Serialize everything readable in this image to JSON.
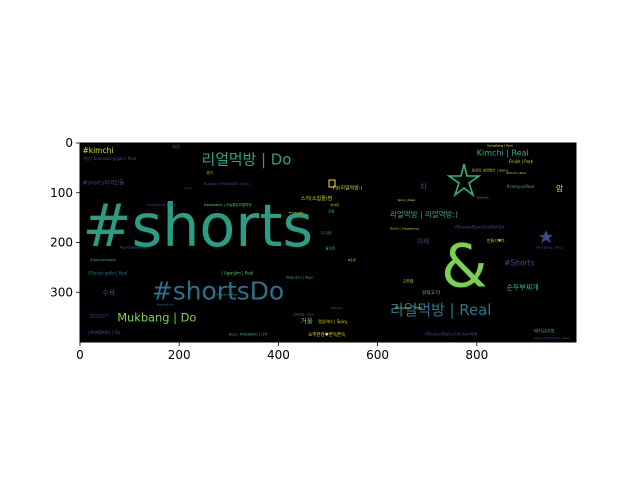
{
  "chart_data": {
    "type": "wordcloud",
    "title": "",
    "xlabel": "",
    "ylabel": "",
    "xlim": [
      0,
      1000
    ],
    "ylim": [
      400,
      0
    ],
    "x_ticks": [
      "0",
      "200",
      "400",
      "600",
      "800"
    ],
    "y_ticks": [
      "0",
      "100",
      "200",
      "300"
    ],
    "background": "#000000",
    "colormap": "viridis",
    "words": [
      {
        "text": "#shorts",
        "x": 5,
        "y": 175,
        "size": 118,
        "color": "#2a9d84"
      },
      {
        "text": "&",
        "x": 728,
        "y": 255,
        "size": 120,
        "color": "#7ad151"
      },
      {
        "text": "#shortsDo",
        "x": 145,
        "y": 300,
        "size": 50,
        "color": "#2c728e"
      },
      {
        "text": "리얼먹방 | Do",
        "x": 245,
        "y": 35,
        "size": 30,
        "color": "#2ea37d"
      },
      {
        "text": "리얼먹방 | Real",
        "x": 625,
        "y": 338,
        "size": 30,
        "color": "#29788e"
      },
      {
        "text": "Mukbang | Do",
        "x": 75,
        "y": 352,
        "size": 23,
        "color": "#7fd34e"
      },
      {
        "text": "Kimchi | Real",
        "x": 800,
        "y": 20,
        "size": 16,
        "color": "#2fb47c"
      },
      {
        "text": "리얼먹방 | 리얼먹방:)",
        "x": 625,
        "y": 145,
        "size": 15,
        "color": "#3ca97a"
      },
      {
        "text": "#kimchi",
        "x": 5,
        "y": 16,
        "size": 15,
        "color": "#d8e219"
      },
      {
        "text": "#Shorts",
        "x": 855,
        "y": 242,
        "size": 15,
        "color": "#3e4a89"
      },
      {
        "text": "순두부찌개",
        "x": 860,
        "y": 290,
        "size": 14,
        "color": "#3bbb75"
      },
      {
        "text": "수육",
        "x": 45,
        "y": 302,
        "size": 14,
        "color": "#3b528b"
      },
      {
        "text": "#shorts외국인들",
        "x": 5,
        "y": 80,
        "size": 11,
        "color": "#3b528b"
      },
      {
        "text": "거울",
        "x": 445,
        "y": 358,
        "size": 13,
        "color": "#7fd34e"
      },
      {
        "text": "차",
        "x": 685,
        "y": 88,
        "size": 16,
        "color": "#3e4a89"
      },
      {
        "text": "암",
        "x": 960,
        "y": 92,
        "size": 15,
        "color": "#fde725"
      },
      {
        "text": "이해",
        "x": 680,
        "y": 198,
        "size": 13,
        "color": "#3e4a89"
      },
      {
        "text": "Fat리얼먹방:)",
        "x": 510,
        "y": 90,
        "size": 10,
        "color": "#aadc32"
      },
      {
        "text": "스지(소힘줄)찜",
        "x": 445,
        "y": 112,
        "size": 10,
        "color": "#aadc32"
      },
      {
        "text": "Finish | Pork",
        "x": 865,
        "y": 38,
        "size": 8,
        "color": "#c2df23"
      },
      {
        "text": "#ramyunReal",
        "x": 860,
        "y": 88,
        "size": 8,
        "color": "#2fb47c"
      },
      {
        "text": "동치미,계란말이 | Spicy",
        "x": 790,
        "y": 55,
        "size": 7,
        "color": "#9fda3a"
      },
      {
        "text": "| Dwaeji-galbi | Real",
        "x": 15,
        "y": 262,
        "size": 8,
        "color": "#2a788e"
      },
      {
        "text": "| Agwijjim | Real",
        "x": 285,
        "y": 262,
        "size": 8,
        "color": "#5ec962"
      },
      {
        "text": "| MUKBANG | Do",
        "x": 15,
        "y": 382,
        "size": 8,
        "color": "#3b528b"
      },
      {
        "text": "먹방 | Sundubu-jjigae | Real",
        "x": 5,
        "y": 32,
        "size": 8,
        "color": "#3b528b"
      },
      {
        "text": "Bulgogi | MUKBANG | Real",
        "x": 250,
        "y": 82,
        "size": 7,
        "color": "#3e4a89"
      },
      {
        "text": "#BraisedSpicyChicken육패",
        "x": 695,
        "y": 385,
        "size": 8,
        "color": "#3e4a89"
      },
      {
        "text": "#BraisedSpicyCodfishDo",
        "x": 755,
        "y": 170,
        "size": 8,
        "color": "#3b528b"
      },
      {
        "text": "소주한잔♥쫀득쫀득",
        "x": 460,
        "y": 385,
        "size": 9,
        "color": "#fde725"
      },
      {
        "text": "맛있어다 | Spicy",
        "x": 480,
        "y": 360,
        "size": 8,
        "color": "#d8e219"
      },
      {
        "text": "고추장",
        "x": 650,
        "y": 278,
        "size": 8,
        "color": "#d8e219"
      },
      {
        "text": "닭볶고기(",
        "x": 690,
        "y": 300,
        "size": 9,
        "color": "#5ec962"
      },
      {
        "text": "돼지갈비찜",
        "x": 915,
        "y": 378,
        "size": 9,
        "color": "#1fa187"
      },
      {
        "text": "Tangsuyuk | Real",
        "x": 135,
        "y": 125,
        "size": 7,
        "color": "#3e4a89"
      },
      {
        "text": "#spicyfoodReal",
        "x": 80,
        "y": 210,
        "size": 7,
        "color": "#2a788e"
      },
      {
        "text": "#Spicyoctopus",
        "x": 20,
        "y": 235,
        "size": 7,
        "color": "#2fb47c"
      },
      {
        "text": "Rice | MUKBANG | 너무",
        "x": 300,
        "y": 385,
        "size": 7,
        "color": "#2fb47c"
      },
      {
        "text": "만들기♥lt.",
        "x": 820,
        "y": 197,
        "size": 8,
        "color": "#c2df23"
      },
      {
        "text": "Kalguksu | Real",
        "x": 415,
        "y": 270,
        "size": 7,
        "color": "#3ca97a"
      },
      {
        "text": "매콤",
        "x": 185,
        "y": 8,
        "size": 9,
        "color": "#3b528b"
      },
      {
        "text": "아귀찜",
        "x": 485,
        "y": 182,
        "size": 8,
        "color": "#2a788e"
      },
      {
        "text": "불짓한",
        "x": 495,
        "y": 212,
        "size": 7,
        "color": "#2fb47c"
      },
      {
        "text": "포함",
        "x": 500,
        "y": 138,
        "size": 7,
        "color": "#2fb47c"
      },
      {
        "text": "Ramyeon | Real",
        "x": 635,
        "y": 332,
        "size": 7,
        "color": "#aadc32"
      },
      {
        "text": "명기",
        "x": 255,
        "y": 60,
        "size": 7,
        "color": "#aadc32"
      },
      {
        "text": "Mukbang | Rice",
        "x": 920,
        "y": 210,
        "size": 7,
        "color": "#3e4a89"
      },
      {
        "text": "Galbi | MUKBANG | Real",
        "x": 915,
        "y": 392,
        "size": 6,
        "color": "#3b528b"
      },
      {
        "text": "Gamjatang | Real",
        "x": 820,
        "y": 5,
        "size": 6,
        "color": "#fde725"
      },
      {
        "text": "Finish | Yukgaejang",
        "x": 625,
        "y": 172,
        "size": 6,
        "color": "#c2df23"
      },
      {
        "text": "tteokbokki | 오늘통닭리얼먹방",
        "x": 250,
        "y": 125,
        "size": 7,
        "color": "#5ec962"
      },
      {
        "text": "#ricecake",
        "x": 420,
        "y": 140,
        "size": 6,
        "color": "#c2df23"
      },
      {
        "text": "리얼먹방 | Real",
        "x": 430,
        "y": 345,
        "size": 6,
        "color": "#2a788e"
      },
      {
        "text": "#jjamppong",
        "x": 20,
        "y": 345,
        "size": 6,
        "color": "#3e4a89"
      },
      {
        "text": "Mustard | Real",
        "x": 275,
        "y": 305,
        "size": 6,
        "color": "#3ca97a"
      },
      {
        "text": "#shorts",
        "x": 800,
        "y": 110,
        "size": 6,
        "color": "#2fb47c"
      },
      {
        "text": "Kimchi | Pork",
        "x": 860,
        "y": 60,
        "size": 6,
        "color": "#d8e219"
      },
      {
        "text": "Spicy | Real",
        "x": 640,
        "y": 115,
        "size": 6,
        "color": "#d8e219"
      },
      {
        "text": "바삭한",
        "x": 505,
        "y": 125,
        "size": 6,
        "color": "#d8e219"
      },
      {
        "text": "#소주",
        "x": 540,
        "y": 235,
        "size": 6,
        "color": "#d8e219"
      },
      {
        "text": "#ricecake",
        "x": 20,
        "y": 350,
        "size": 6,
        "color": "#3e4a89"
      },
      {
        "text": "Spicy",
        "x": 210,
        "y": 90,
        "size": 6,
        "color": "#3b528b"
      },
      {
        "text": "#spicyfood",
        "x": 155,
        "y": 325,
        "size": 6,
        "color": "#2a788e"
      },
      {
        "text": "#shorts",
        "x": 505,
        "y": 332,
        "size": 6,
        "color": "#2c728e"
      }
    ]
  }
}
